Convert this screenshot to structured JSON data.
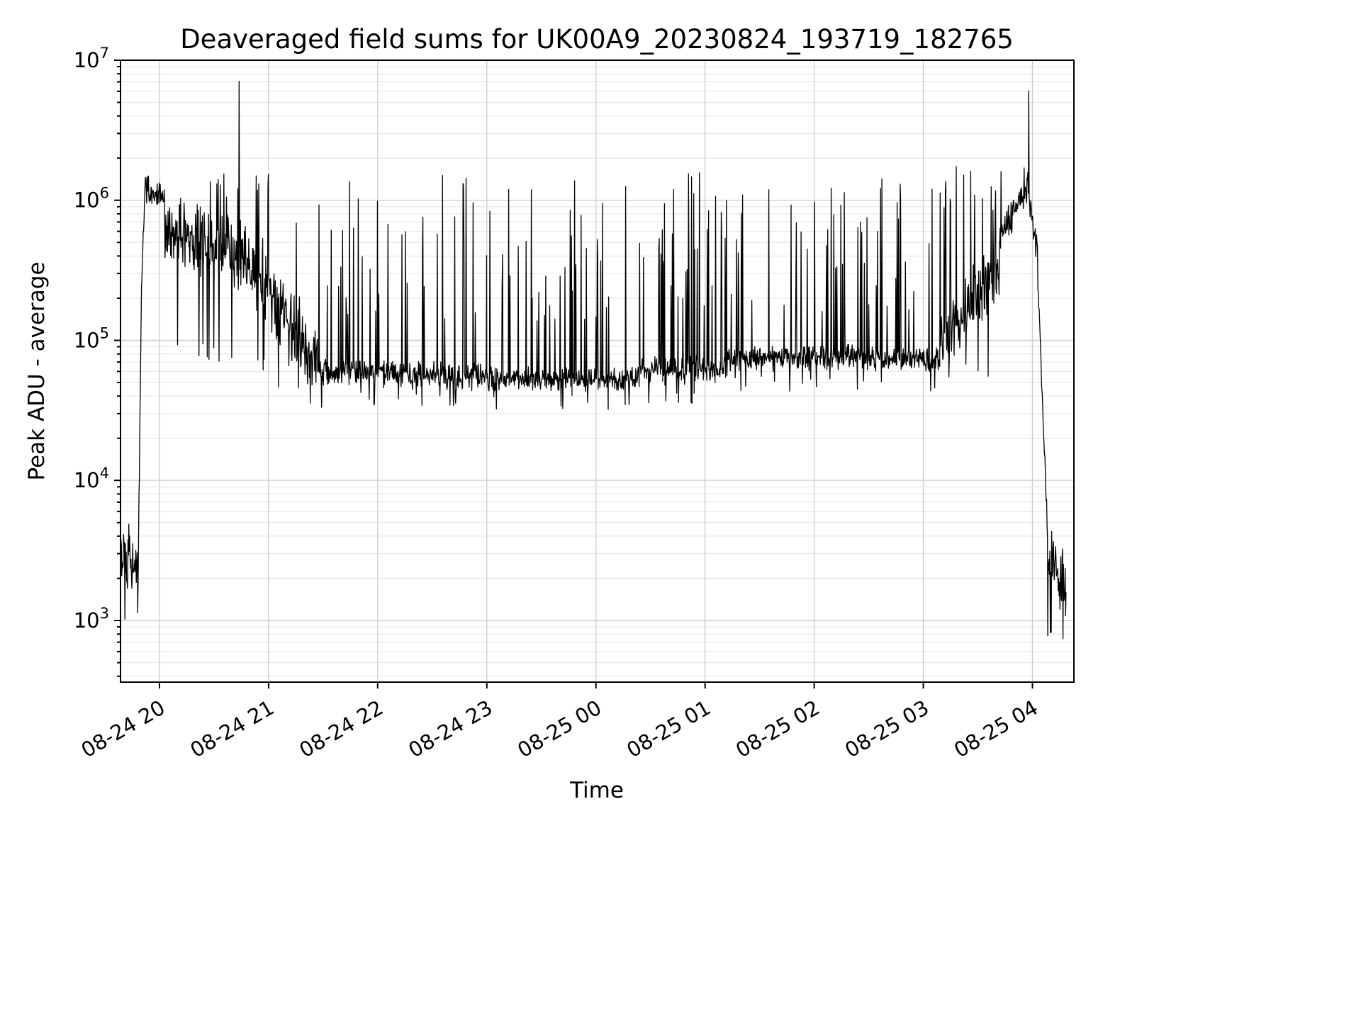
{
  "chart_data": {
    "type": "line",
    "title": "Deaveraged field sums for UK00A9_20230824_193719_182765",
    "xlabel": "Time",
    "ylabel": "Peak ADU - average",
    "yscale": "log",
    "line_color": "#000000",
    "background_color": "#ffffff",
    "spine_color": "#000000",
    "grid": {
      "on": true,
      "major_color": "#cfcfcf",
      "minor_color": "#e4e4e4"
    },
    "legend": "none",
    "x_axis": {
      "tick_labels": [
        "08-24 20",
        "08-24 21",
        "08-24 22",
        "08-24 23",
        "08-25 00",
        "08-25 01",
        "08-25 02",
        "08-25 03",
        "08-25 04"
      ],
      "tick_hours": [
        20,
        21,
        22,
        23,
        24,
        25,
        26,
        27,
        28
      ],
      "range_hours": [
        19.643,
        28.38
      ],
      "label_rotation_deg": -30
    },
    "y_axis": {
      "tick_exponents": [
        3,
        4,
        5,
        6,
        7
      ],
      "log_range": [
        2.56,
        7.0
      ]
    },
    "series_model": {
      "description": "Single noisy black time series; values are log10(Peak ADU - average). Starts near 2.5e3, jumps to ~2e6 at 08-24 20, noisy decay to a ~6e4 baseline with frequent spikes up to ~1.6e6, giant spike 7e6 at ~20:44, rise back to ~1.5e6 near 08-25 04 with spike 6e6, then falls to ~7e2.",
      "seed": 42,
      "dt_hours": 0.004,
      "segments": [
        {
          "t0": 19.643,
          "t1": 19.8,
          "b0": 3.42,
          "b1": 3.38,
          "jit": 0.22,
          "spike_p": 0.02,
          "spike_lo": 3.5,
          "spike_hi": 3.72,
          "dip_p": 0.05,
          "dip_lo": 2.95
        },
        {
          "t0": 19.8,
          "t1": 19.835,
          "b0": 3.05,
          "b1": 5.35,
          "jit": 0.1
        },
        {
          "t0": 19.835,
          "t1": 19.875,
          "b0": 5.35,
          "b1": 6.28,
          "jit": 0.06
        },
        {
          "t0": 19.875,
          "t1": 20.05,
          "b0": 6.1,
          "b1": 6.0,
          "jit": 0.13,
          "spike_p": 0.03,
          "spike_lo": 6.18,
          "spike_hi": 6.3,
          "dip_p": 0.05,
          "dip_lo": 5.5
        },
        {
          "t0": 20.05,
          "t1": 20.55,
          "b0": 5.78,
          "b1": 5.65,
          "jit": 0.3,
          "spike_p": 0.05,
          "spike_lo": 5.9,
          "spike_hi": 6.15,
          "dip_p": 0.06,
          "dip_lo": 4.85
        },
        {
          "t0": 20.55,
          "t1": 21.05,
          "b0": 5.7,
          "b1": 5.35,
          "jit": 0.32,
          "spike_p": 0.06,
          "spike_lo": 5.9,
          "spike_hi": 6.2,
          "dip_p": 0.05,
          "dip_lo": 4.75
        },
        {
          "t0": 21.05,
          "t1": 21.45,
          "b0": 5.25,
          "b1": 4.85,
          "jit": 0.3,
          "spike_p": 0.05,
          "spike_lo": 5.6,
          "spike_hi": 6.05,
          "dip_p": 0.05,
          "dip_lo": 4.55
        },
        {
          "t0": 21.45,
          "t1": 23.0,
          "b0": 4.78,
          "b1": 4.74,
          "jit": 0.11,
          "spike_p": 0.09,
          "spike_lo": 5.1,
          "spike_hi": 6.2,
          "dip_p": 0.04,
          "dip_lo": 4.5
        },
        {
          "t0": 23.0,
          "t1": 24.4,
          "b0": 4.72,
          "b1": 4.72,
          "jit": 0.1,
          "spike_p": 0.1,
          "spike_lo": 5.1,
          "spike_hi": 6.2,
          "dip_p": 0.04,
          "dip_lo": 4.5
        },
        {
          "t0": 24.4,
          "t1": 25.2,
          "b0": 4.78,
          "b1": 4.8,
          "jit": 0.11,
          "spike_p": 0.12,
          "spike_lo": 5.2,
          "spike_hi": 6.2,
          "dip_p": 0.03,
          "dip_lo": 4.55
        },
        {
          "t0": 25.2,
          "t1": 26.0,
          "b0": 4.86,
          "b1": 4.88,
          "jit": 0.1,
          "spike_p": 0.08,
          "spike_lo": 5.2,
          "spike_hi": 6.1,
          "dip_p": 0.03,
          "dip_lo": 4.6
        },
        {
          "t0": 26.0,
          "t1": 27.15,
          "b0": 4.88,
          "b1": 4.86,
          "jit": 0.1,
          "spike_p": 0.12,
          "spike_lo": 5.2,
          "spike_hi": 6.2,
          "dip_p": 0.03,
          "dip_lo": 4.6
        },
        {
          "t0": 27.15,
          "t1": 27.7,
          "b0": 4.95,
          "b1": 5.55,
          "jit": 0.28,
          "spike_p": 0.1,
          "spike_lo": 5.9,
          "spike_hi": 6.25,
          "dip_p": 0.02,
          "dip_lo": 4.7
        },
        {
          "t0": 27.7,
          "t1": 27.95,
          "b0": 5.7,
          "b1": 6.1,
          "jit": 0.15,
          "spike_p": 0.04,
          "spike_lo": 6.18,
          "spike_hi": 6.3
        },
        {
          "t0": 27.95,
          "t1": 28.05,
          "b0": 6.15,
          "b1": 5.6,
          "jit": 0.12
        },
        {
          "t0": 28.05,
          "t1": 28.14,
          "b0": 5.4,
          "b1": 3.6,
          "jit": 0.1
        },
        {
          "t0": 28.14,
          "t1": 28.31,
          "b0": 3.5,
          "b1": 3.2,
          "jit": 0.28,
          "dip_p": 0.06,
          "dip_lo": 2.85
        }
      ],
      "events": [
        {
          "t": 20.73,
          "log10": 6.85
        },
        {
          "t": 27.965,
          "log10": 6.78
        }
      ]
    }
  }
}
